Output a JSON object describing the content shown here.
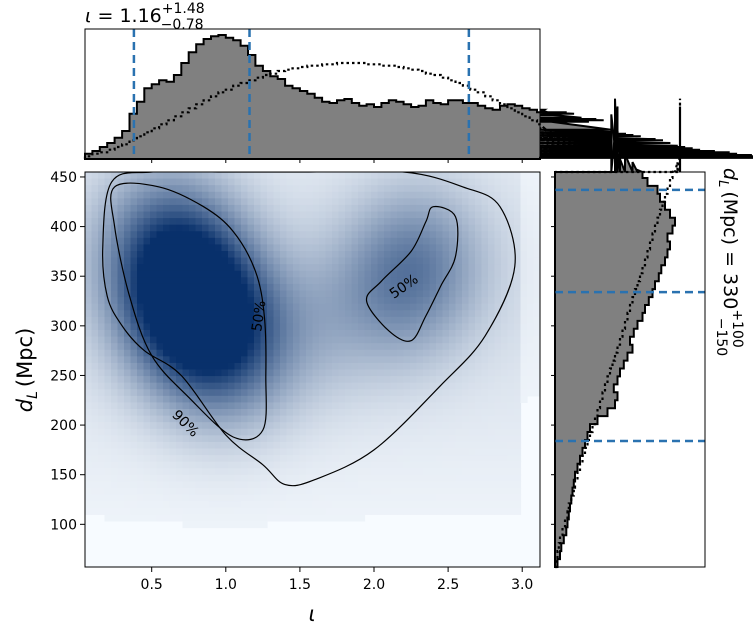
{
  "chart_data": [
    {
      "type": "heatmap",
      "subtype": "2D density with credible contours",
      "xlabel_symbol": "ι",
      "ylabel_main": "d",
      "ylabel_sub": "L",
      "ylabel_unit": "(Mpc)",
      "xlim": [
        0.05,
        3.12
      ],
      "ylim": [
        57,
        455
      ],
      "x_ticks": [
        0.5,
        1.0,
        1.5,
        2.0,
        2.5,
        3.0
      ],
      "x_tick_labels": [
        "0.5",
        "1.0",
        "1.5",
        "2.0",
        "2.5",
        "3.0"
      ],
      "y_ticks": [
        100,
        150,
        200,
        250,
        300,
        350,
        400,
        450
      ],
      "y_tick_labels": [
        "100",
        "150",
        "200",
        "250",
        "300",
        "350",
        "400",
        "450"
      ],
      "colormap": "Blues",
      "density_peaks": [
        {
          "x": 0.78,
          "y": 320,
          "weight": 1.0
        },
        {
          "x": 0.6,
          "y": 385,
          "weight": 0.55
        },
        {
          "x": 1.0,
          "y": 270,
          "weight": 0.45
        },
        {
          "x": 2.3,
          "y": 370,
          "weight": 0.35
        },
        {
          "x": 2.15,
          "y": 330,
          "weight": 0.25
        },
        {
          "x": 1.6,
          "y": 300,
          "weight": 0.15
        }
      ],
      "contours": [
        {
          "label": "50%",
          "points": [
            [
              0.25,
              440
            ],
            [
              0.55,
              440
            ],
            [
              0.85,
              420
            ],
            [
              1.05,
              395
            ],
            [
              1.2,
              355
            ],
            [
              1.26,
              310
            ],
            [
              1.27,
              250
            ],
            [
              1.25,
              195
            ],
            [
              1.05,
              188
            ],
            [
              0.75,
              228
            ],
            [
              0.5,
              270
            ],
            [
              0.35,
              330
            ],
            [
              0.25,
              400
            ],
            [
              0.25,
              440
            ]
          ]
        },
        {
          "label": "50%",
          "points": [
            [
              2.4,
              420
            ],
            [
              2.55,
              410
            ],
            [
              2.55,
              370
            ],
            [
              2.45,
              340
            ],
            [
              2.35,
              310
            ],
            [
              2.25,
              285
            ],
            [
              2.1,
              295
            ],
            [
              1.95,
              325
            ],
            [
              2.05,
              345
            ],
            [
              2.25,
              375
            ],
            [
              2.35,
              405
            ],
            [
              2.4,
              420
            ]
          ]
        },
        {
          "label": "90%",
          "points": [
            [
              0.17,
              380
            ],
            [
              0.23,
              445
            ],
            [
              0.5,
              455
            ],
            [
              1.0,
              455
            ],
            [
              1.5,
              455
            ],
            [
              2.2,
              455
            ],
            [
              2.6,
              440
            ],
            [
              2.85,
              420
            ],
            [
              2.95,
              360
            ],
            [
              2.75,
              290
            ],
            [
              2.45,
              240
            ],
            [
              2.0,
              175
            ],
            [
              1.6,
              145
            ],
            [
              1.4,
              140
            ],
            [
              1.25,
              160
            ],
            [
              1.0,
              190
            ],
            [
              0.7,
              250
            ],
            [
              0.45,
              275
            ],
            [
              0.3,
              300
            ],
            [
              0.2,
              330
            ],
            [
              0.17,
              380
            ]
          ]
        }
      ]
    },
    {
      "type": "histogram",
      "orientation": "vertical",
      "title_value": "1.16",
      "title_upper": "+1.48",
      "title_lower": "−0.78",
      "xlim": [
        0.05,
        3.12
      ],
      "quantile_lines": [
        0.38,
        1.16,
        2.64
      ],
      "bin_width": 0.05,
      "bin_start": 0.05,
      "posterior_heights": [
        0.04,
        0.06,
        0.09,
        0.12,
        0.16,
        0.21,
        0.34,
        0.43,
        0.53,
        0.56,
        0.59,
        0.58,
        0.63,
        0.72,
        0.8,
        0.86,
        0.9,
        0.92,
        0.93,
        0.91,
        0.89,
        0.85,
        0.78,
        0.7,
        0.66,
        0.62,
        0.6,
        0.55,
        0.53,
        0.51,
        0.49,
        0.46,
        0.43,
        0.42,
        0.44,
        0.45,
        0.42,
        0.4,
        0.41,
        0.39,
        0.42,
        0.44,
        0.43,
        0.41,
        0.39,
        0.4,
        0.44,
        0.42,
        0.41,
        0.44,
        0.44,
        0.42,
        0.42,
        0.4,
        0.38,
        0.37,
        0.4,
        0.41,
        0.4,
        0.38,
        0.37,
        0.35,
        0.37,
        0.34,
        0.33,
        0.35,
        0.34,
        0.31,
        0.28,
        0.3,
        0.29,
        0.22,
        0.2,
        0.19,
        0.18,
        0.17,
        0.15,
        0.15,
        0.14,
        0.12,
        0.1,
        0.09,
        0.08,
        0.07,
        0.06,
        0.06,
        0.05,
        0.05,
        0.04,
        0.03,
        0.03,
        0.02,
        0.02,
        0.02,
        0.02,
        0.01,
        0.01,
        0.01,
        0.01,
        0.01,
        0.01
      ],
      "prior_heights": [
        0.02,
        0.04,
        0.05,
        0.07,
        0.09,
        0.11,
        0.14,
        0.17,
        0.2,
        0.23,
        0.26,
        0.29,
        0.32,
        0.35,
        0.38,
        0.41,
        0.44,
        0.47,
        0.5,
        0.52,
        0.55,
        0.57,
        0.59,
        0.61,
        0.63,
        0.64,
        0.66,
        0.67,
        0.68,
        0.69,
        0.7,
        0.7,
        0.71,
        0.71,
        0.72,
        0.72,
        0.72,
        0.72,
        0.71,
        0.71,
        0.7,
        0.7,
        0.69,
        0.68,
        0.67,
        0.66,
        0.64,
        0.63,
        0.61,
        0.59,
        0.57,
        0.55,
        0.52,
        0.5,
        0.47,
        0.44,
        0.41,
        0.38,
        0.35,
        0.32,
        0.29,
        0.26,
        0.23,
        0.2,
        0.18,
        0.16,
        0.14,
        0.12,
        0.1,
        0.09,
        0.08,
        0.07,
        0.06,
        0.05,
        0.05,
        0.04,
        0.04,
        0.03,
        0.03,
        0.02,
        0.02,
        0.02,
        0.02,
        0.01,
        0.01,
        0.01,
        0.01,
        0.01,
        0.01,
        0.01,
        0.01,
        0.01,
        0.01,
        0.01,
        0.01,
        0.01,
        0.01,
        0.01,
        0.01,
        0.01,
        0.01
      ]
    },
    {
      "type": "histogram",
      "orientation": "horizontal",
      "side_label_main": "d",
      "side_label_sub": "L",
      "side_label_text": "(Mpc) = 330",
      "side_label_upper": "+100",
      "side_label_lower": "−150",
      "ylim": [
        57,
        455
      ],
      "quantile_lines": [
        184,
        334,
        437
      ],
      "bin_width": 8,
      "bin_start": 57,
      "posterior_widths": [
        0.02,
        0.04,
        0.05,
        0.07,
        0.09,
        0.1,
        0.11,
        0.12,
        0.13,
        0.14,
        0.15,
        0.16,
        0.18,
        0.2,
        0.22,
        0.24,
        0.26,
        0.28,
        0.34,
        0.42,
        0.48,
        0.5,
        0.47,
        0.5,
        0.52,
        0.55,
        0.58,
        0.62,
        0.6,
        0.63,
        0.66,
        0.7,
        0.72,
        0.75,
        0.78,
        0.8,
        0.83,
        0.85,
        0.88,
        0.9,
        0.92,
        0.9,
        0.94,
        0.96,
        0.92,
        0.88,
        0.84,
        0.82,
        0.74,
        0.7,
        0.66,
        0.62,
        0.56,
        0.48,
        0.52,
        0.48,
        0.5,
        0.45,
        0.5,
        0.48
      ],
      "prior_widths": [
        0.01,
        0.02,
        0.03,
        0.04,
        0.06,
        0.08,
        0.1,
        0.11,
        0.13,
        0.15,
        0.16,
        0.18,
        0.2,
        0.22,
        0.24,
        0.26,
        0.28,
        0.3,
        0.32,
        0.34,
        0.36,
        0.38,
        0.4,
        0.42,
        0.44,
        0.46,
        0.48,
        0.5,
        0.52,
        0.54,
        0.56,
        0.58,
        0.6,
        0.62,
        0.64,
        0.66,
        0.68,
        0.7,
        0.72,
        0.74,
        0.76,
        0.78,
        0.8,
        0.82,
        0.84,
        0.86,
        0.88,
        0.9,
        0.92,
        0.94,
        0.96,
        0.98,
        1.0,
        1.0,
        1.0,
        1.0,
        1.0,
        1.0,
        1.0,
        1.0
      ]
    }
  ],
  "colors": {
    "hist_fill": "#808080",
    "quantile_line": "#2a72b0",
    "outline": "#000000"
  }
}
